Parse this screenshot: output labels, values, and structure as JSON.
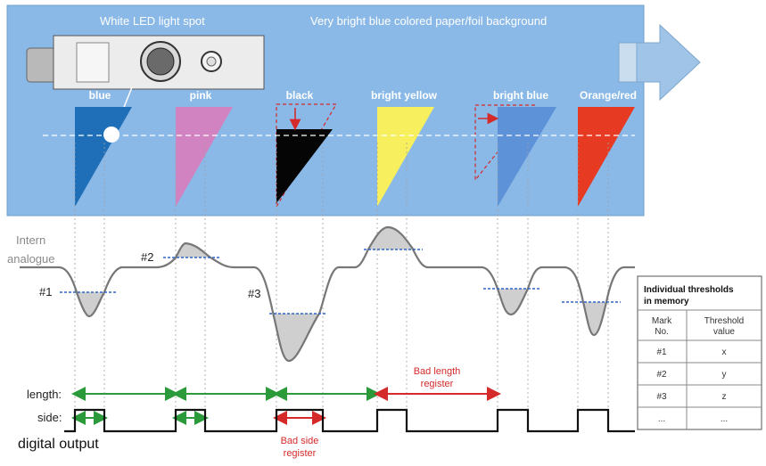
{
  "banner": {
    "led_label": "White LED light spot",
    "background_label": "Very bright blue colored paper/foil background"
  },
  "marks": [
    {
      "label": "blue",
      "color": "#1f6fb8"
    },
    {
      "label": "pink",
      "color": "#d183c1"
    },
    {
      "label": "black",
      "color": "#050505"
    },
    {
      "label": "bright yellow",
      "color": "#f7ef5d"
    },
    {
      "label": "bright blue",
      "color": "#5e92d8"
    },
    {
      "label": "Orange/red",
      "color": "#e63a22"
    }
  ],
  "signal": {
    "label_line1": "Intern",
    "label_line2": "analogue",
    "threshold_markers": [
      "#1",
      "#2",
      "#3"
    ]
  },
  "timing": {
    "length_label": "length:",
    "side_label": "side:",
    "output_label": "digital output",
    "bad_length_line1": "Bad length",
    "bad_length_line2": "register",
    "bad_side_line1": "Bad side",
    "bad_side_line2": "register"
  },
  "thresholds_table": {
    "title_line1": "Individual thresholds",
    "title_line2": "in memory",
    "col1_line1": "Mark",
    "col1_line2": "No.",
    "col2_line1": "Threshold",
    "col2_line2": "value",
    "rows": [
      {
        "mark": "#1",
        "value": "x"
      },
      {
        "mark": "#2",
        "value": "y"
      },
      {
        "mark": "#3",
        "value": "z"
      },
      {
        "mark": "...",
        "value": "..."
      }
    ]
  },
  "colors": {
    "banner_bg": "#8ab9e8",
    "signal": "#777777",
    "threshold": "#2e63c7",
    "good_arrow": "#2a9a3a",
    "bad_arrow": "#d42a2a"
  }
}
